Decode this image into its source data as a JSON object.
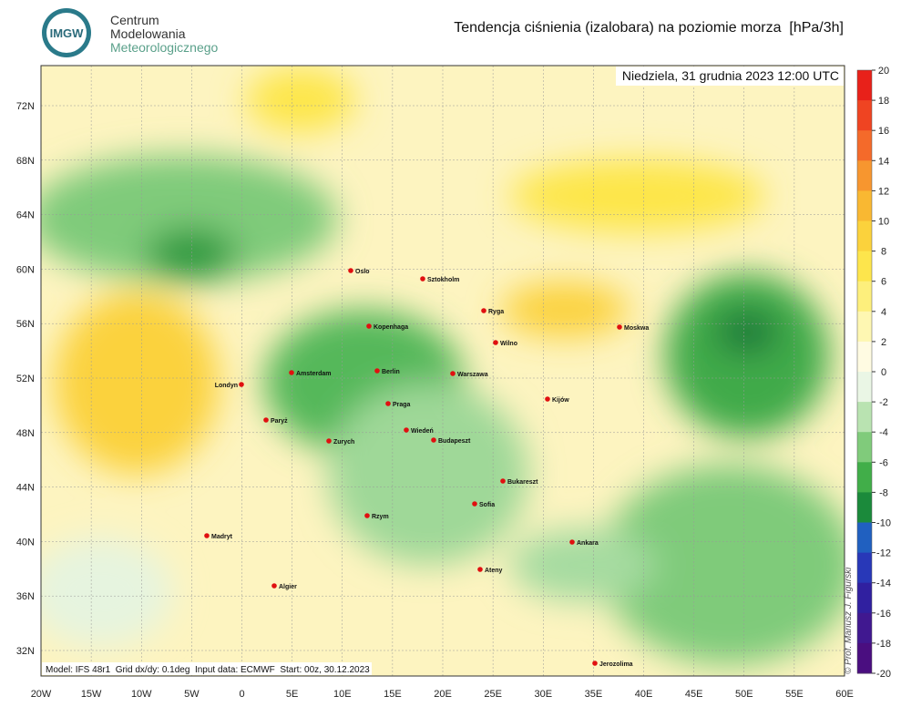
{
  "header": {
    "logo": "IMGW",
    "org_lines": [
      "Centrum",
      "Modelowania",
      "Meteorologicznego"
    ],
    "title": "Tendencja ciśnienia (izalobara) na poziomie morza  [hPa/3h]"
  },
  "map": {
    "date": "Niedziela, 31 grudnia 2023 12:00 UTC",
    "lon_labels": [
      "20W",
      "15W",
      "10W",
      "5W",
      "0",
      "5E",
      "10E",
      "15E",
      "20E",
      "25E",
      "30E",
      "35E",
      "40E",
      "45E",
      "50E",
      "55E",
      "60E"
    ],
    "lat_labels": [
      "72N",
      "68N",
      "64N",
      "60N",
      "56N",
      "52N",
      "48N",
      "44N",
      "40N",
      "36N",
      "32N"
    ],
    "cities": [
      "Oslo",
      "Sztokholm",
      "Kopenhaga",
      "Ryga",
      "Moskwa",
      "Wilno",
      "Amsterdam",
      "Berlin",
      "Warszawa",
      "Londyn",
      "Kijów",
      "Praga",
      "Paryż",
      "Wiedeń",
      "Budapeszt",
      "Zurych",
      "Bukareszt",
      "Sofia",
      "Rzym",
      "Madryt",
      "Ankara",
      "Ateny",
      "Algier",
      "Jerozolima"
    ],
    "footer": "Model: IFS 48r1  Grid dx/dy: 0.1deg  Input data: ECMWF  Start: 00z, 30.12.2023",
    "copyright": "© Prof. Mariusz J. Figurski"
  },
  "colorbar": {
    "levels": [
      20,
      18,
      16,
      14,
      12,
      10,
      8,
      6,
      4,
      2,
      0,
      -2,
      -4,
      -6,
      -8,
      -10,
      -12,
      -14,
      -16,
      -18,
      -20
    ],
    "colors": [
      "#e8211a",
      "#ef4422",
      "#f46a2a",
      "#f7962f",
      "#f9b832",
      "#fbd23c",
      "#fde54c",
      "#fdef7c",
      "#fef7b2",
      "#fffbe2",
      "#eaf6e5",
      "#b9e3b1",
      "#80cb7b",
      "#41ae49",
      "#1b8a3b",
      "#2060c0",
      "#2838b8",
      "#3020a0",
      "#401890",
      "#4a0e80"
    ]
  }
}
